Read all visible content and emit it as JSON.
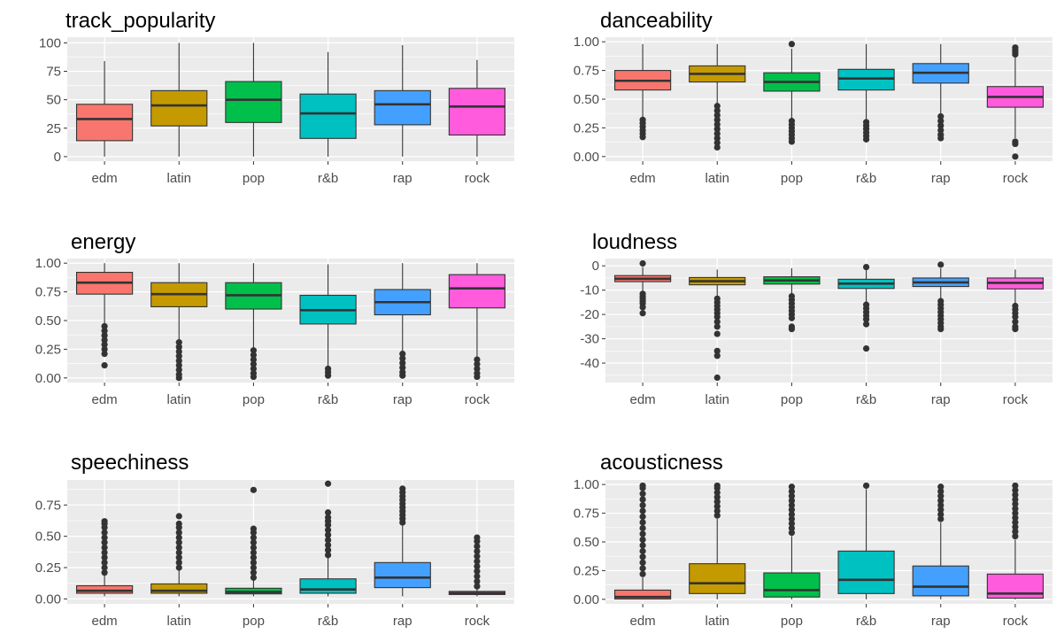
{
  "chart_data": [
    {
      "type": "boxplot",
      "title": "track_popularity",
      "categories": [
        "edm",
        "latin",
        "pop",
        "r&b",
        "rap",
        "rock"
      ],
      "ylim": [
        -4,
        105
      ],
      "yticks": [
        0,
        25,
        50,
        75,
        100
      ],
      "ytick_labels": [
        "0",
        "25",
        "50",
        "75",
        "100"
      ],
      "boxes": [
        {
          "q1": 14,
          "median": 33,
          "q3": 46,
          "whisker_low": 0,
          "whisker_high": 84,
          "outliers": []
        },
        {
          "q1": 27,
          "median": 45,
          "q3": 58,
          "whisker_low": 0,
          "whisker_high": 100,
          "outliers": []
        },
        {
          "q1": 30,
          "median": 50,
          "q3": 66,
          "whisker_low": 0,
          "whisker_high": 100,
          "outliers": []
        },
        {
          "q1": 16,
          "median": 38,
          "q3": 55,
          "whisker_low": 0,
          "whisker_high": 92,
          "outliers": []
        },
        {
          "q1": 28,
          "median": 46,
          "q3": 58,
          "whisker_low": 0,
          "whisker_high": 98,
          "outliers": []
        },
        {
          "q1": 19,
          "median": 44,
          "q3": 60,
          "whisker_low": 0,
          "whisker_high": 85,
          "outliers": []
        }
      ]
    },
    {
      "type": "boxplot",
      "title": "danceability",
      "categories": [
        "edm",
        "latin",
        "pop",
        "r&b",
        "rap",
        "rock"
      ],
      "ylim": [
        -0.04,
        1.04
      ],
      "yticks": [
        0,
        0.25,
        0.5,
        0.75,
        1
      ],
      "ytick_labels": [
        "0.00",
        "0.25",
        "0.50",
        "0.75",
        "1.00"
      ],
      "boxes": [
        {
          "q1": 0.58,
          "median": 0.66,
          "q3": 0.75,
          "whisker_low": 0.34,
          "whisker_high": 0.98,
          "outliers": [
            0.32,
            0.29,
            0.26,
            0.23,
            0.2,
            0.17
          ]
        },
        {
          "q1": 0.65,
          "median": 0.72,
          "q3": 0.79,
          "whisker_low": 0.46,
          "whisker_high": 0.98,
          "outliers": [
            0.44,
            0.4,
            0.36,
            0.32,
            0.28,
            0.24,
            0.2,
            0.16,
            0.12,
            0.08
          ]
        },
        {
          "q1": 0.57,
          "median": 0.65,
          "q3": 0.73,
          "whisker_low": 0.33,
          "whisker_high": 0.94,
          "outliers": [
            0.31,
            0.28,
            0.25,
            0.22,
            0.19,
            0.16,
            0.13,
            0.98
          ]
        },
        {
          "q1": 0.58,
          "median": 0.68,
          "q3": 0.76,
          "whisker_low": 0.32,
          "whisker_high": 0.98,
          "outliers": [
            0.3,
            0.27,
            0.24,
            0.21,
            0.18,
            0.15
          ]
        },
        {
          "q1": 0.64,
          "median": 0.73,
          "q3": 0.81,
          "whisker_low": 0.37,
          "whisker_high": 0.98,
          "outliers": [
            0.35,
            0.31,
            0.27,
            0.23,
            0.19,
            0.16
          ]
        },
        {
          "q1": 0.43,
          "median": 0.52,
          "q3": 0.61,
          "whisker_low": 0.16,
          "whisker_high": 0.87,
          "outliers": [
            0.13,
            0.11,
            0.0,
            0.89,
            0.91,
            0.93,
            0.95
          ]
        }
      ]
    },
    {
      "type": "boxplot",
      "title": "energy",
      "categories": [
        "edm",
        "latin",
        "pop",
        "r&b",
        "rap",
        "rock"
      ],
      "ylim": [
        -0.04,
        1.04
      ],
      "yticks": [
        0,
        0.25,
        0.5,
        0.75,
        1
      ],
      "ytick_labels": [
        "0.00",
        "0.25",
        "0.50",
        "0.75",
        "1.00"
      ],
      "boxes": [
        {
          "q1": 0.73,
          "median": 0.83,
          "q3": 0.92,
          "whisker_low": 0.47,
          "whisker_high": 1.0,
          "outliers": [
            0.45,
            0.41,
            0.37,
            0.33,
            0.29,
            0.25,
            0.21,
            0.11
          ]
        },
        {
          "q1": 0.62,
          "median": 0.73,
          "q3": 0.83,
          "whisker_low": 0.33,
          "whisker_high": 1.0,
          "outliers": [
            0.31,
            0.27,
            0.23,
            0.19,
            0.15,
            0.11,
            0.07,
            0.03,
            0.0
          ]
        },
        {
          "q1": 0.6,
          "median": 0.72,
          "q3": 0.83,
          "whisker_low": 0.26,
          "whisker_high": 1.0,
          "outliers": [
            0.24,
            0.2,
            0.16,
            0.12,
            0.08,
            0.04,
            0.01
          ]
        },
        {
          "q1": 0.47,
          "median": 0.59,
          "q3": 0.72,
          "whisker_low": 0.1,
          "whisker_high": 0.99,
          "outliers": [
            0.08,
            0.05,
            0.02
          ]
        },
        {
          "q1": 0.55,
          "median": 0.66,
          "q3": 0.77,
          "whisker_low": 0.23,
          "whisker_high": 1.0,
          "outliers": [
            0.21,
            0.17,
            0.13,
            0.09,
            0.05,
            0.02
          ]
        },
        {
          "q1": 0.61,
          "median": 0.78,
          "q3": 0.9,
          "whisker_low": 0.18,
          "whisker_high": 1.0,
          "outliers": [
            0.16,
            0.12,
            0.08,
            0.04,
            0.01
          ]
        }
      ]
    },
    {
      "type": "boxplot",
      "title": "loudness",
      "categories": [
        "edm",
        "latin",
        "pop",
        "r&b",
        "rap",
        "rock"
      ],
      "ylim": [
        -48,
        3
      ],
      "yticks": [
        -40,
        -30,
        -20,
        -10,
        0
      ],
      "ytick_labels": [
        "-40",
        "-30",
        "-20",
        "-10",
        "0"
      ],
      "boxes": [
        {
          "q1": -6.5,
          "median": -5.3,
          "q3": -4.0,
          "whisker_low": -10.5,
          "whisker_high": -0.5,
          "outliers": [
            -11.5,
            -12.5,
            -13.5,
            -14.5,
            -15.5,
            -17,
            -19.5,
            1.0
          ]
        },
        {
          "q1": -7.8,
          "median": -6.3,
          "q3": -4.8,
          "whisker_low": -12.5,
          "whisker_high": -1.5,
          "outliers": [
            -13.5,
            -15,
            -16.5,
            -18,
            -19.5,
            -21,
            -23,
            -25,
            -28,
            -35,
            -37,
            -46
          ]
        },
        {
          "q1": -7.5,
          "median": -6.0,
          "q3": -4.5,
          "whisker_low": -11.5,
          "whisker_high": -1.0,
          "outliers": [
            -12.5,
            -14,
            -15.5,
            -17,
            -18.5,
            -20,
            -21.5,
            -25,
            -26
          ]
        },
        {
          "q1": -9.3,
          "median": -7.3,
          "q3": -5.5,
          "whisker_low": -15.0,
          "whisker_high": -1.5,
          "outliers": [
            -16,
            -17.5,
            -19,
            -20.5,
            -22,
            -24,
            -34,
            -0.5
          ]
        },
        {
          "q1": -8.5,
          "median": -6.8,
          "q3": -5.0,
          "whisker_low": -13.5,
          "whisker_high": -1.0,
          "outliers": [
            -14.5,
            -16,
            -17.5,
            -19,
            -20.5,
            -22,
            -23.5,
            -25,
            -26,
            0.5
          ]
        },
        {
          "q1": -9.5,
          "median": -7.0,
          "q3": -5.0,
          "whisker_low": -15.5,
          "whisker_high": -1.5,
          "outliers": [
            -16.5,
            -18,
            -19.5,
            -21,
            -23,
            -25,
            -26
          ]
        }
      ]
    },
    {
      "type": "boxplot",
      "title": "speechiness",
      "categories": [
        "edm",
        "latin",
        "pop",
        "r&b",
        "rap",
        "rock"
      ],
      "ylim": [
        -0.04,
        0.95
      ],
      "yticks": [
        0,
        0.25,
        0.5,
        0.75
      ],
      "ytick_labels": [
        "0.00",
        "0.25",
        "0.50",
        "0.75"
      ],
      "boxes": [
        {
          "q1": 0.045,
          "median": 0.065,
          "q3": 0.105,
          "whisker_low": 0.02,
          "whisker_high": 0.19,
          "outliers": [
            0.21,
            0.25,
            0.29,
            0.33,
            0.37,
            0.41,
            0.45,
            0.49,
            0.53,
            0.57,
            0.6,
            0.62
          ]
        },
        {
          "q1": 0.045,
          "median": 0.065,
          "q3": 0.12,
          "whisker_low": 0.02,
          "whisker_high": 0.23,
          "outliers": [
            0.25,
            0.29,
            0.33,
            0.37,
            0.41,
            0.45,
            0.49,
            0.53,
            0.57,
            0.6,
            0.66
          ]
        },
        {
          "q1": 0.04,
          "median": 0.055,
          "q3": 0.085,
          "whisker_low": 0.02,
          "whisker_high": 0.15,
          "outliers": [
            0.17,
            0.21,
            0.25,
            0.29,
            0.33,
            0.37,
            0.41,
            0.45,
            0.49,
            0.53,
            0.56,
            0.87
          ]
        },
        {
          "q1": 0.045,
          "median": 0.075,
          "q3": 0.16,
          "whisker_low": 0.02,
          "whisker_high": 0.33,
          "outliers": [
            0.35,
            0.39,
            0.43,
            0.47,
            0.51,
            0.55,
            0.59,
            0.62,
            0.65,
            0.69,
            0.92
          ]
        },
        {
          "q1": 0.09,
          "median": 0.17,
          "q3": 0.29,
          "whisker_low": 0.02,
          "whisker_high": 0.59,
          "outliers": [
            0.61,
            0.64,
            0.67,
            0.7,
            0.73,
            0.76,
            0.79,
            0.82,
            0.85,
            0.88
          ]
        },
        {
          "q1": 0.035,
          "median": 0.045,
          "q3": 0.06,
          "whisker_low": 0.02,
          "whisker_high": 0.085,
          "outliers": [
            0.1,
            0.14,
            0.18,
            0.22,
            0.26,
            0.3,
            0.34,
            0.38,
            0.42,
            0.46,
            0.49
          ]
        }
      ]
    },
    {
      "type": "boxplot",
      "title": "acousticness",
      "categories": [
        "edm",
        "latin",
        "pop",
        "r&b",
        "rap",
        "rock"
      ],
      "ylim": [
        -0.04,
        1.04
      ],
      "yticks": [
        0,
        0.25,
        0.5,
        0.75,
        1
      ],
      "ytick_labels": [
        "0.00",
        "0.25",
        "0.50",
        "0.75",
        "1.00"
      ],
      "boxes": [
        {
          "q1": 0.003,
          "median": 0.02,
          "q3": 0.08,
          "whisker_low": 0.0,
          "whisker_high": 0.19,
          "outliers": [
            0.22,
            0.27,
            0.32,
            0.37,
            0.42,
            0.47,
            0.52,
            0.57,
            0.62,
            0.67,
            0.72,
            0.77,
            0.82,
            0.87,
            0.92,
            0.97,
            0.99
          ]
        },
        {
          "q1": 0.05,
          "median": 0.14,
          "q3": 0.31,
          "whisker_low": 0.0,
          "whisker_high": 0.7,
          "outliers": [
            0.73,
            0.77,
            0.81,
            0.85,
            0.89,
            0.93,
            0.97,
            0.99
          ]
        },
        {
          "q1": 0.02,
          "median": 0.08,
          "q3": 0.23,
          "whisker_low": 0.0,
          "whisker_high": 0.55,
          "outliers": [
            0.58,
            0.62,
            0.66,
            0.7,
            0.74,
            0.78,
            0.82,
            0.86,
            0.9,
            0.94,
            0.98
          ]
        },
        {
          "q1": 0.05,
          "median": 0.17,
          "q3": 0.42,
          "whisker_low": 0.0,
          "whisker_high": 0.96,
          "outliers": [
            0.99
          ]
        },
        {
          "q1": 0.03,
          "median": 0.11,
          "q3": 0.29,
          "whisker_low": 0.0,
          "whisker_high": 0.67,
          "outliers": [
            0.7,
            0.74,
            0.78,
            0.82,
            0.86,
            0.9,
            0.94,
            0.98
          ]
        },
        {
          "q1": 0.01,
          "median": 0.05,
          "q3": 0.22,
          "whisker_low": 0.0,
          "whisker_high": 0.52,
          "outliers": [
            0.55,
            0.59,
            0.63,
            0.67,
            0.71,
            0.75,
            0.79,
            0.83,
            0.87,
            0.91,
            0.95,
            0.99
          ]
        }
      ]
    }
  ],
  "colors": {
    "panel_bg": "#ebebeb",
    "grid": "#ffffff",
    "box_outline": "#333333",
    "categories": [
      "#f8766d",
      "#c49a00",
      "#00c04b",
      "#00c1c1",
      "#44a0ff",
      "#ff5bdc"
    ]
  }
}
